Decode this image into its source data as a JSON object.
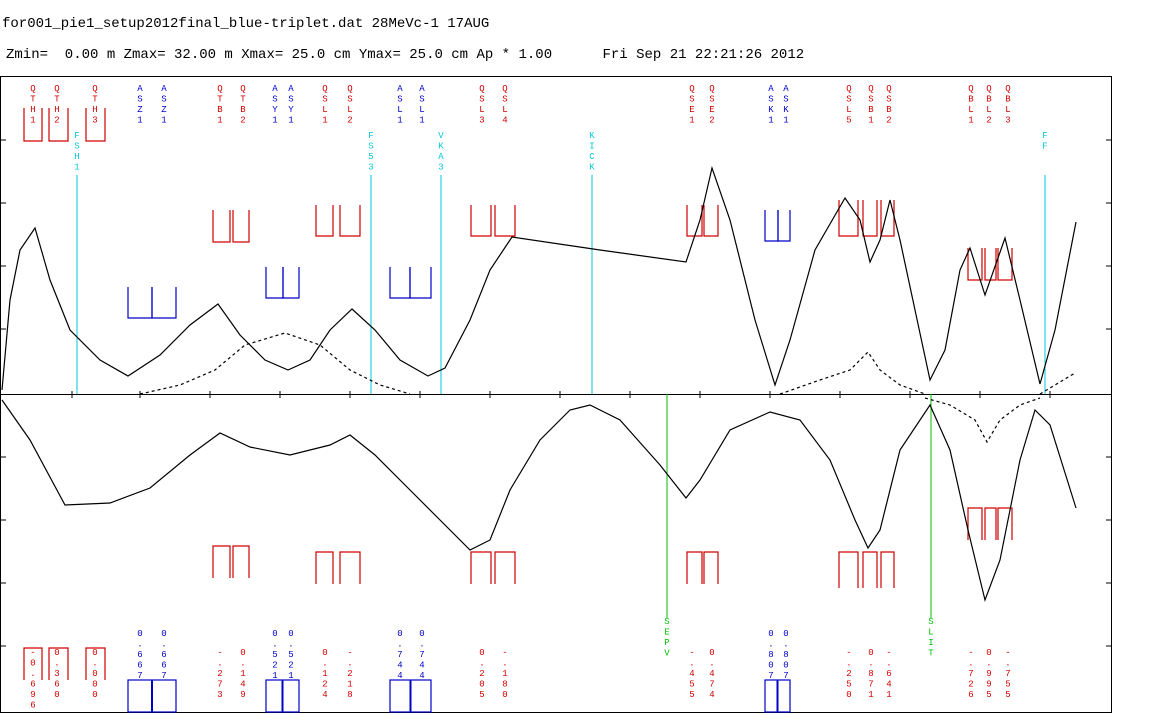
{
  "header": {
    "file": "for001_pie1_setup2012final_blue-triplet.dat 28MeVc-1 17AUG",
    "params": "Zmin=  0.00 m Zmax= 32.00 m Xmax= 25.0 cm Ymax= 25.0 cm Ap * 1.00      Fri Sep 21 22:21:26 2012"
  },
  "elements": [
    {
      "label": "QTH1",
      "strength": "-0.696"
    },
    {
      "label": "QTH2",
      "strength": "0.360"
    },
    {
      "label": "QTH3",
      "strength": "0.000"
    },
    {
      "label": "ASZ1",
      "strength": "0.667"
    },
    {
      "label": "ASZ1",
      "strength": "0.667"
    },
    {
      "label": "QTB1",
      "strength": "-.273"
    },
    {
      "label": "QTB2",
      "strength": "0.149"
    },
    {
      "label": "ASY1",
      "strength": "0.521"
    },
    {
      "label": "ASY1",
      "strength": "0.521"
    },
    {
      "label": "QSL1",
      "strength": "0.124"
    },
    {
      "label": "QSL2",
      "strength": "-.218"
    },
    {
      "label": "ASL1",
      "strength": "0.744"
    },
    {
      "label": "ASL1",
      "strength": "0.744"
    },
    {
      "label": "QSL3",
      "strength": "0.205"
    },
    {
      "label": "QSL4",
      "strength": "-.180"
    },
    {
      "label": "QSE1",
      "strength": "-.455"
    },
    {
      "label": "QSE2",
      "strength": "0.474"
    },
    {
      "label": "ASK1",
      "strength": "0.807"
    },
    {
      "label": "ASK1",
      "strength": "0.807"
    },
    {
      "label": "QSL5",
      "strength": "-.250"
    },
    {
      "label": "QSB1",
      "strength": "0.871"
    },
    {
      "label": "QSB2",
      "strength": "-.641"
    },
    {
      "label": "QBL1",
      "strength": "-.726"
    },
    {
      "label": "QBL2",
      "strength": "0.995"
    },
    {
      "label": "QBL3",
      "strength": "-.755"
    }
  ],
  "markers": [
    {
      "label": "FSH1"
    },
    {
      "label": "FS53"
    },
    {
      "label": "VKA3"
    },
    {
      "label": "KICK"
    },
    {
      "label": "FF"
    },
    {
      "label": "SEPV"
    },
    {
      "label": "SLIT"
    }
  ]
}
